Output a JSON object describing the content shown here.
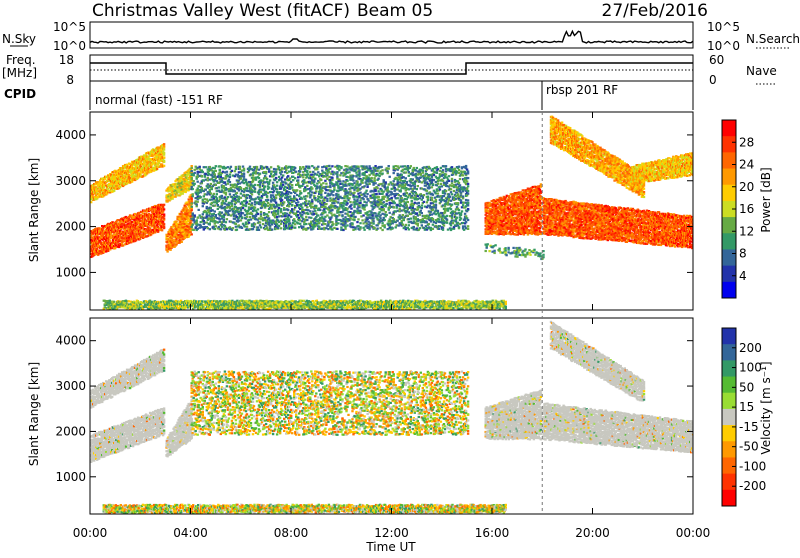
{
  "header": {
    "radar": "Christmas Valley West (fitACF)",
    "beam": "Beam 05",
    "date": "27/Feb/2016"
  },
  "strips": {
    "nsky_label": "N.Sky",
    "nsky_ticks": [
      "10^5",
      "10^0"
    ],
    "nsearch_label": "N.Search",
    "freq_label": [
      "Freq.",
      "[MHz]"
    ],
    "freq_ticks": [
      "18",
      "8"
    ],
    "nave_label": "Nave",
    "nave_ticks": [
      "60",
      "0"
    ],
    "cpid_label": "CPID",
    "cpid_segments": [
      {
        "start_h": 0,
        "end_h": 18,
        "label": "normal (fast) -151 RF"
      },
      {
        "start_h": 18,
        "end_h": 24,
        "label": "rbsp 201 RF"
      }
    ]
  },
  "chart_data": [
    {
      "type": "heatmap",
      "panel": "power",
      "ylabel": "Slant Range [km]",
      "xlabel": "Time UT",
      "xlim_hours": [
        0,
        24
      ],
      "ylim_km": [
        180,
        4500
      ],
      "yticks": [
        "1000",
        "2000",
        "3000",
        "4000"
      ],
      "xticks": [
        "00:00",
        "04:00",
        "08:00",
        "12:00",
        "16:00",
        "20:00",
        "00:00"
      ],
      "colorbar": {
        "label": "Power [dB]",
        "ticks": [
          "28",
          "24",
          "20",
          "16",
          "12",
          "8",
          "4"
        ],
        "colors": [
          "#ff0000",
          "#ff3300",
          "#ff6600",
          "#ff9900",
          "#ffcc00",
          "#ccdd22",
          "#66aa44",
          "#339966",
          "#336699",
          "#2233aa",
          "#0000ee"
        ]
      },
      "regions": [
        {
          "t0": 0.0,
          "t1": 2.9,
          "r0_start": 1300,
          "r0_end": 1900,
          "r1_start": 1900,
          "r1_end": 2500,
          "value": 27
        },
        {
          "t0": 0.0,
          "t1": 2.9,
          "r0_start": 2500,
          "r0_end": 3300,
          "r1_start": 2900,
          "r1_end": 3800,
          "value": 20
        },
        {
          "t0": 3.0,
          "t1": 4.0,
          "r0_start": 1400,
          "r0_end": 1800,
          "r1_start": 1800,
          "r1_end": 2700,
          "value": 24
        },
        {
          "t0": 3.0,
          "t1": 4.0,
          "r0_start": 2500,
          "r0_end": 2800,
          "r1_start": 2800,
          "r1_end": 3300,
          "value": 18
        },
        {
          "t0": 4.0,
          "t1": 15.0,
          "r0_start": 1900,
          "r0_end": 1900,
          "r1_start": 3300,
          "r1_end": 3300,
          "value": 9
        },
        {
          "t0": 15.7,
          "t1": 17.9,
          "r0_start": 1800,
          "r0_end": 1800,
          "r1_start": 2500,
          "r1_end": 2900,
          "value": 27
        },
        {
          "t0": 15.7,
          "t1": 18.0,
          "r0_start": 1400,
          "r0_end": 1250,
          "r1_start": 1600,
          "r1_end": 1450,
          "value": 11
        },
        {
          "t0": 18.0,
          "t1": 24.0,
          "r0_start": 1800,
          "r0_end": 1500,
          "r1_start": 2600,
          "r1_end": 2200,
          "value": 27
        },
        {
          "t0": 18.3,
          "t1": 22.0,
          "r0_start": 3800,
          "r0_end": 2600,
          "r1_start": 4400,
          "r1_end": 3100,
          "value": 22
        },
        {
          "t0": 21.5,
          "t1": 24.0,
          "r0_start": 2900,
          "r0_end": 3100,
          "r1_start": 3300,
          "r1_end": 3600,
          "value": 20
        },
        {
          "t0": 0.5,
          "t1": 16.5,
          "r0_start": 180,
          "r0_end": 180,
          "r1_start": 360,
          "r1_end": 360,
          "value": 14
        }
      ]
    },
    {
      "type": "heatmap",
      "panel": "velocity",
      "ylabel": "Slant Range [km]",
      "xlabel": "Time UT",
      "xlim_hours": [
        0,
        24
      ],
      "ylim_km": [
        180,
        4500
      ],
      "yticks": [
        "1000",
        "2000",
        "3000",
        "4000"
      ],
      "xticks": [
        "00:00",
        "04:00",
        "08:00",
        "12:00",
        "16:00",
        "20:00",
        "00:00"
      ],
      "colorbar": {
        "label": "Velocity [m s⁻¹]",
        "ticks": [
          "200",
          "100",
          "50",
          "15",
          "-15",
          "-50",
          "-100",
          "-200"
        ],
        "colors": [
          "#2233aa",
          "#336699",
          "#339966",
          "#55bb33",
          "#99dd33",
          "#c8c8c0",
          "#ffcc00",
          "#ff9900",
          "#ff6600",
          "#ff3300",
          "#ff0000"
        ]
      },
      "regions": [
        {
          "t0": 0.0,
          "t1": 2.9,
          "r0_start": 1300,
          "r0_end": 1900,
          "r1_start": 1900,
          "r1_end": 2500,
          "value": 0
        },
        {
          "t0": 0.0,
          "t1": 2.9,
          "r0_start": 2500,
          "r0_end": 3300,
          "r1_start": 2900,
          "r1_end": 3800,
          "value": 0
        },
        {
          "t0": 3.0,
          "t1": 4.0,
          "r0_start": 1400,
          "r0_end": 1800,
          "r1_start": 1800,
          "r1_end": 2700,
          "value": 0
        },
        {
          "t0": 15.7,
          "t1": 17.9,
          "r0_start": 1800,
          "r0_end": 1800,
          "r1_start": 2500,
          "r1_end": 2900,
          "value": 0
        },
        {
          "t0": 18.0,
          "t1": 24.0,
          "r0_start": 1800,
          "r0_end": 1500,
          "r1_start": 2600,
          "r1_end": 2200,
          "value": 0
        },
        {
          "t0": 18.3,
          "t1": 22.0,
          "r0_start": 3800,
          "r0_end": 2600,
          "r1_start": 4400,
          "r1_end": 3100,
          "value": 0
        },
        {
          "t0": 4.0,
          "t1": 15.0,
          "r0_start": 1900,
          "r0_end": 1900,
          "r1_start": 3300,
          "r1_end": 3300,
          "value": -30
        },
        {
          "t0": 0.5,
          "t1": 16.5,
          "r0_start": 180,
          "r0_end": 180,
          "r1_start": 360,
          "r1_end": 360,
          "value": 40
        }
      ]
    }
  ]
}
